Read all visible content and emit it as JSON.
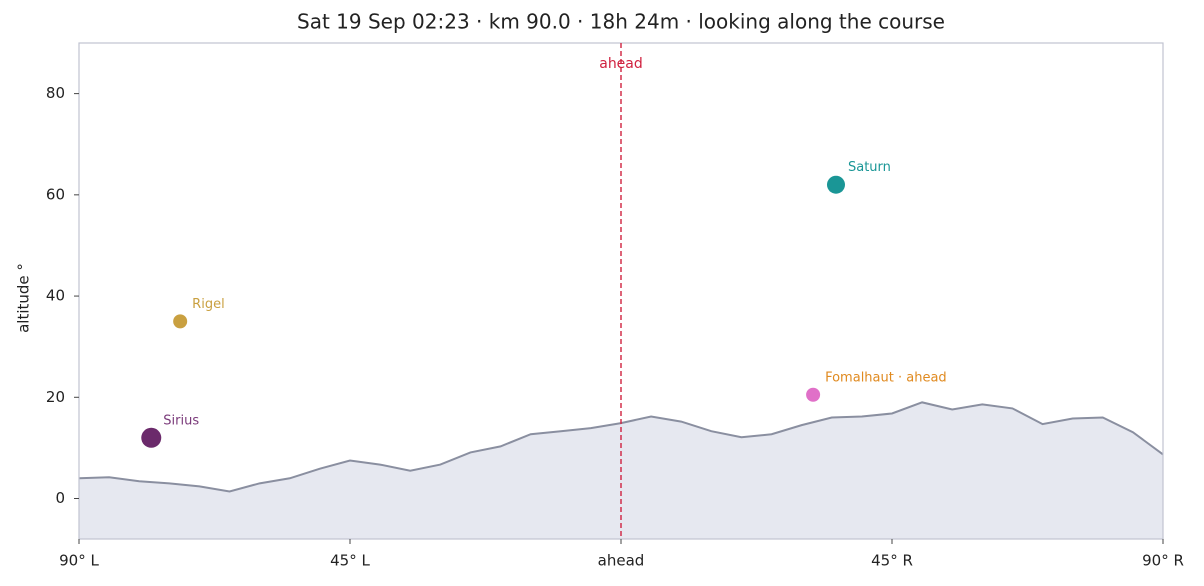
{
  "chart_data": {
    "type": "scatter",
    "title": "Sat 19 Sep 02:23  ·  km 90.0  ·  18h 24m  ·  looking along the course",
    "y_label": "altitude °",
    "xlim": [
      -90,
      90
    ],
    "ylim": [
      -8,
      90
    ],
    "xticks": [
      {
        "value": -90,
        "label": "90° L"
      },
      {
        "value": -45,
        "label": "45° L"
      },
      {
        "value": 0,
        "label": "ahead"
      },
      {
        "value": 45,
        "label": "45° R"
      },
      {
        "value": 90,
        "label": "90° R"
      }
    ],
    "yticks": [
      0,
      20,
      40,
      60,
      80
    ],
    "grid": false,
    "vline": {
      "x": 0,
      "label": "ahead",
      "color": "#d0213f"
    },
    "horizon": {
      "color": "#8a8fa0",
      "fill": "#e6e8f0",
      "x": [
        -90,
        -85,
        -80,
        -75,
        -70,
        -65,
        -60,
        -55,
        -50,
        -45,
        -40,
        -35,
        -30,
        -25,
        -20,
        -15,
        -10,
        -5,
        0,
        5,
        10,
        15,
        20,
        25,
        30,
        35,
        40,
        45,
        50,
        55,
        60,
        65,
        70,
        75,
        80,
        85,
        90
      ],
      "values": [
        4.0,
        4.2,
        3.4,
        3.0,
        2.4,
        1.4,
        3.0,
        4.0,
        5.9,
        7.5,
        6.7,
        5.5,
        6.7,
        9.1,
        10.3,
        12.7,
        13.3,
        13.9,
        14.9,
        16.2,
        15.2,
        13.3,
        12.1,
        12.7,
        14.5,
        16.0,
        16.2,
        16.8,
        19.0,
        17.6,
        18.6,
        17.8,
        14.7,
        15.8,
        16.0,
        13.1,
        8.7
      ]
    },
    "points": [
      {
        "name": "Sirius",
        "x": -78,
        "y": 12,
        "size": 10,
        "color": "#6b2a6b",
        "label_color": "#7a3a7a"
      },
      {
        "name": "Rigel",
        "x": -73.2,
        "y": 35,
        "size": 7,
        "color": "#c9a040",
        "label_color": "#c9a040"
      },
      {
        "name": "Saturn",
        "x": 35.7,
        "y": 62,
        "size": 9,
        "color": "#1a9696",
        "label_color": "#1a9696"
      },
      {
        "name": "Fomalhaut · ahead",
        "x": 31.9,
        "y": 20.5,
        "size": 7,
        "color": "#e070c8",
        "label_color": "#e08a20"
      }
    ]
  }
}
